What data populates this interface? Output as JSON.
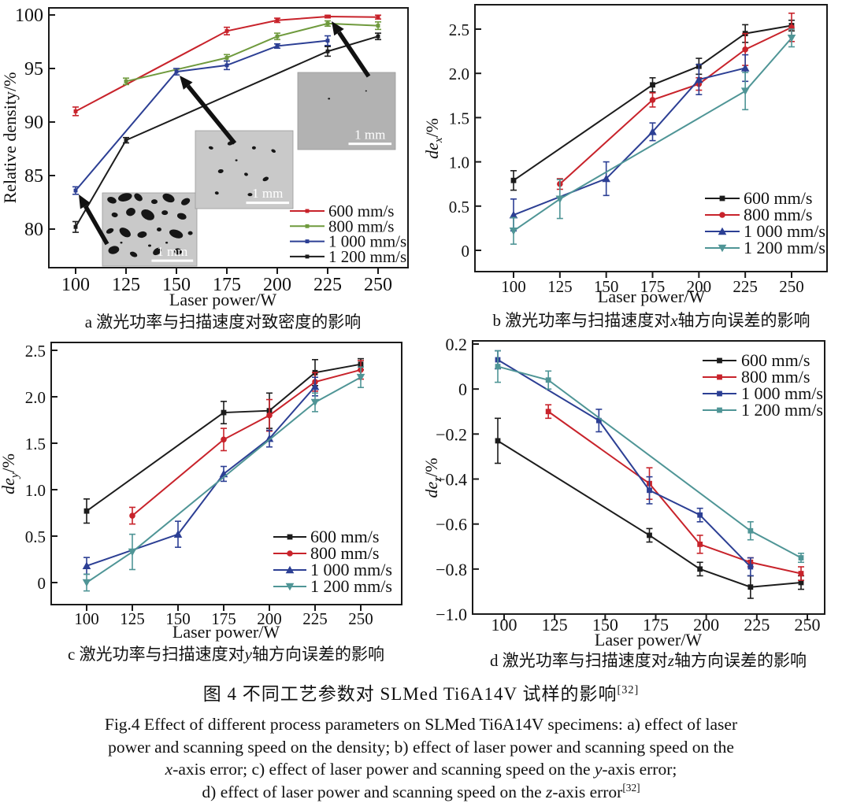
{
  "figure": {
    "caption_cn": {
      "text": "图 4  不同工艺参数对 SLMed Ti6A14V 试样的影响",
      "sup": "[32]"
    },
    "caption_en": {
      "line1": "Fig.4 Effect of different process parameters on SLMed Ti6A14V specimens: a) effect of laser",
      "line2": "power and scanning speed on the density; b) effect of laser power and scanning speed on the",
      "line3": {
        "x": "x",
        "t1": "-axis error; c) effect of laser power and scanning speed on the ",
        "y": "y",
        "t2": "-axis error;"
      },
      "line4": {
        "t1": "d) effect of laser power and scanning speed on the ",
        "z": "z",
        "t2": "-axis error",
        "sup": "[32]"
      }
    }
  },
  "chart_data": [
    {
      "id": "a",
      "type": "line",
      "caption": {
        "pre": "a 激光功率与扫描速度对致密度的影响",
        "it": "",
        "post": ""
      },
      "xlabel": "Laser power/W",
      "ylabel": {
        "pre": "Relative density/%",
        "it": "",
        "sub": "",
        "post": ""
      },
      "x_ticks": [
        "100",
        "125",
        "150",
        "175",
        "200",
        "225",
        "250"
      ],
      "y_ticks": [
        {
          "label": "100",
          "v": 100
        },
        {
          "label": "95",
          "v": 95
        },
        {
          "label": "90",
          "v": 90
        },
        {
          "label": "85",
          "v": 85
        },
        {
          "label": "80",
          "v": 80
        }
      ],
      "xlim": [
        87,
        265
      ],
      "ylim": [
        76.4,
        100.7
      ],
      "grid": false,
      "legend_position": "bottom-right",
      "series": [
        {
          "name": "600 mm/s",
          "color": "#c8232b",
          "marker": "square",
          "x": [
            100,
            175,
            200,
            225,
            250
          ],
          "y": [
            91.0,
            98.5,
            99.5,
            99.85,
            99.8
          ],
          "err": [
            0.4,
            0.35,
            0.2,
            0.12,
            0.18
          ]
        },
        {
          "name": "800 mm/s",
          "color": "#6f9a3d",
          "marker": "square",
          "x": [
            125,
            175,
            200,
            225,
            250
          ],
          "y": [
            93.8,
            96.0,
            98.0,
            99.2,
            99.0
          ],
          "err": [
            0.3,
            0.3,
            0.3,
            0.25,
            0.35
          ]
        },
        {
          "name": "1 000 mm/s",
          "color": "#2c3f94",
          "marker": "square",
          "x": [
            100,
            150,
            175,
            200,
            225
          ],
          "y": [
            83.6,
            94.7,
            95.3,
            97.1,
            97.6
          ],
          "err": [
            0.35,
            0.3,
            0.4,
            0.2,
            0.45
          ]
        },
        {
          "name": "1 200 mm/s",
          "color": "#1c1c1c",
          "marker": "square",
          "x": [
            100,
            125,
            225,
            250
          ],
          "y": [
            80.2,
            88.3,
            96.6,
            98.0
          ],
          "err": [
            0.5,
            0.25,
            0.45,
            0.3
          ]
        }
      ],
      "insets": [
        {
          "scale_label": "1 mm",
          "porosity": "high"
        },
        {
          "scale_label": "1 mm",
          "porosity": "medium"
        },
        {
          "scale_label": "1 mm",
          "porosity": "low"
        }
      ]
    },
    {
      "id": "b",
      "type": "line",
      "caption": {
        "pre": "b 激光功率与扫描速度对",
        "it": "x",
        "post": "轴方向误差的影响"
      },
      "xlabel": "Laser power/W",
      "ylabel": {
        "pre": "",
        "it": "de",
        "sub": "x",
        "post": "/%"
      },
      "x_ticks": [
        "100",
        "125",
        "150",
        "175",
        "200",
        "225",
        "250"
      ],
      "y_ticks": [
        {
          "label": "2.5",
          "v": 2.5
        },
        {
          "label": "2.0",
          "v": 2.0
        },
        {
          "label": "1.5",
          "v": 1.5
        },
        {
          "label": "1.0",
          "v": 1.0
        },
        {
          "label": "0.5",
          "v": 0.5
        },
        {
          "label": "0",
          "v": 0
        }
      ],
      "xlim": [
        79,
        269
      ],
      "ylim": [
        -0.24,
        2.78
      ],
      "grid": false,
      "legend_position": "bottom-right",
      "series": [
        {
          "name": "600 mm/s",
          "color": "#1c1c1c",
          "marker": "square",
          "x": [
            100,
            175,
            200,
            225,
            250
          ],
          "y": [
            0.79,
            1.87,
            2.08,
            2.45,
            2.54
          ],
          "err": [
            0.11,
            0.08,
            0.09,
            0.1,
            0.06
          ]
        },
        {
          "name": "800 mm/s",
          "color": "#c8232b",
          "marker": "circle",
          "x": [
            125,
            175,
            200,
            225,
            250
          ],
          "y": [
            0.75,
            1.7,
            1.88,
            2.27,
            2.52
          ],
          "err": [
            0.06,
            0.08,
            0.07,
            0.18,
            0.16
          ]
        },
        {
          "name": "1 000 mm/s",
          "color": "#2c3f94",
          "marker": "triangle-up",
          "x": [
            100,
            150,
            175,
            200,
            225
          ],
          "y": [
            0.4,
            0.81,
            1.34,
            1.93,
            2.06
          ],
          "err": [
            0.18,
            0.19,
            0.1,
            0.17,
            0.15
          ]
        },
        {
          "name": "1 200 mm/s",
          "color": "#4f9596",
          "marker": "triangle-down",
          "x": [
            100,
            125,
            225,
            250
          ],
          "y": [
            0.22,
            0.58,
            1.8,
            2.4
          ],
          "err": [
            0.15,
            0.22,
            0.21,
            0.1
          ]
        }
      ]
    },
    {
      "id": "c",
      "type": "line",
      "caption": {
        "pre": "c 激光功率与扫描速度对",
        "it": "y",
        "post": "轴方向误差的影响"
      },
      "xlabel": "Laser power/W",
      "ylabel": {
        "pre": "",
        "it": "de",
        "sub": "y",
        "post": "/%"
      },
      "x_ticks": [
        "100",
        "125",
        "150",
        "175",
        "200",
        "225",
        "250"
      ],
      "y_ticks": [
        {
          "label": "2.5",
          "v": 2.5
        },
        {
          "label": "2.0",
          "v": 2.0
        },
        {
          "label": "1.5",
          "v": 1.5
        },
        {
          "label": "1.0",
          "v": 1.0
        },
        {
          "label": "0.5",
          "v": 0.5
        },
        {
          "label": "0",
          "v": 0
        }
      ],
      "xlim": [
        80,
        272
      ],
      "ylim": [
        -0.24,
        2.58
      ],
      "grid": false,
      "legend_position": "bottom-right",
      "series": [
        {
          "name": "600 mm/s",
          "color": "#1c1c1c",
          "marker": "square",
          "x": [
            100,
            175,
            200,
            225,
            250
          ],
          "y": [
            0.77,
            1.83,
            1.85,
            2.26,
            2.35
          ],
          "err": [
            0.13,
            0.12,
            0.19,
            0.14,
            0.06
          ]
        },
        {
          "name": "800 mm/s",
          "color": "#c8232b",
          "marker": "circle",
          "x": [
            125,
            175,
            200,
            225,
            250
          ],
          "y": [
            0.72,
            1.54,
            1.8,
            2.16,
            2.29
          ],
          "err": [
            0.09,
            0.12,
            0.17,
            0.1,
            0.1
          ]
        },
        {
          "name": "1 000 mm/s",
          "color": "#2c3f94",
          "marker": "triangle-up",
          "x": [
            100,
            150,
            175,
            200,
            225
          ],
          "y": [
            0.18,
            0.52,
            1.17,
            1.55,
            2.11
          ],
          "err": [
            0.09,
            0.14,
            0.08,
            0.09,
            0.1
          ]
        },
        {
          "name": "1 200 mm/s",
          "color": "#4f9596",
          "marker": "triangle-down",
          "x": [
            100,
            125,
            225,
            250
          ],
          "y": [
            0.0,
            0.33,
            1.94,
            2.21
          ],
          "err": [
            0.09,
            0.19,
            0.1,
            0.11
          ]
        }
      ]
    },
    {
      "id": "d",
      "type": "line",
      "caption": {
        "pre": "d 激光功率与扫描速度对",
        "it": "z",
        "post": "轴方向误差的影响"
      },
      "xlabel": "Laser power/W",
      "ylabel": {
        "pre": "",
        "it": "de",
        "sub": "z",
        "post": "/%"
      },
      "x_ticks": [
        "100",
        "125",
        "150",
        "175",
        "200",
        "225",
        "250"
      ],
      "y_ticks": [
        {
          "label": "0.2",
          "v": 0.2
        },
        {
          "label": "0",
          "v": 0
        },
        {
          "label": "−0.2",
          "v": -0.2
        },
        {
          "label": "−0.4",
          "v": -0.4
        },
        {
          "label": "−0.6",
          "v": -0.6
        },
        {
          "label": "−0.8",
          "v": -0.8
        },
        {
          "label": "−1.0",
          "v": -1.0
        }
      ],
      "xlim": [
        84,
        259
      ],
      "ylim": [
        -1.02,
        0.22
      ],
      "grid": false,
      "legend_position": "top-right",
      "series": [
        {
          "name": "600 mm/s",
          "color": "#1c1c1c",
          "marker": "square",
          "x": [
            100,
            175,
            200,
            225,
            250
          ],
          "y": [
            -0.23,
            -0.65,
            -0.8,
            -0.88,
            -0.86
          ],
          "err": [
            0.1,
            0.03,
            0.03,
            0.05,
            0.03
          ]
        },
        {
          "name": "800 mm/s",
          "color": "#c8232b",
          "marker": "square",
          "x": [
            125,
            175,
            200,
            225,
            250
          ],
          "y": [
            -0.1,
            -0.42,
            -0.69,
            -0.77,
            -0.82
          ],
          "err": [
            0.03,
            0.07,
            0.04,
            0.02,
            0.03
          ]
        },
        {
          "name": "1 000 mm/s",
          "color": "#2c3f94",
          "marker": "square",
          "x": [
            100,
            150,
            175,
            200,
            225
          ],
          "y": [
            0.13,
            -0.14,
            -0.45,
            -0.56,
            -0.79
          ],
          "err": [
            0.04,
            0.05,
            0.06,
            0.03,
            0.04
          ]
        },
        {
          "name": "1 200 mm/s",
          "color": "#4f9596",
          "marker": "square",
          "x": [
            100,
            125,
            225,
            250
          ],
          "y": [
            0.1,
            0.04,
            -0.63,
            -0.75
          ],
          "err": [
            0.07,
            0.04,
            0.04,
            0.02
          ]
        }
      ]
    }
  ]
}
